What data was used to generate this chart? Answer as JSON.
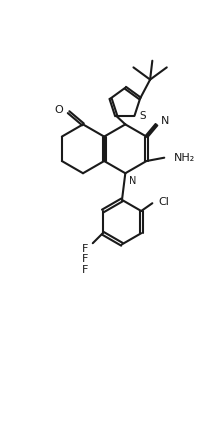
{
  "background_color": "#ffffff",
  "line_color": "#1a1a1a",
  "line_width": 1.5,
  "figure_width": 2.24,
  "figure_height": 4.22,
  "dpi": 100,
  "xlim": [
    0,
    10
  ],
  "ylim": [
    0,
    19
  ]
}
